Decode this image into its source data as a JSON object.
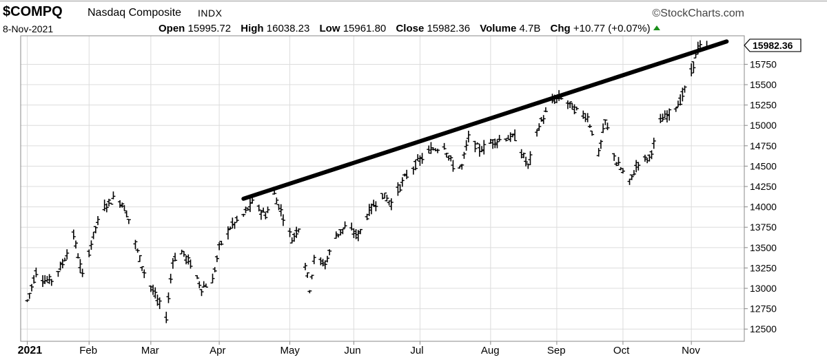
{
  "header": {
    "symbol": "$COMPQ",
    "name": "Nasdaq Composite",
    "exchange": "INDX",
    "brand": "StockCharts.com",
    "brand_icon": "copyright-icon",
    "date": "8-Nov-2021",
    "open_label": "Open",
    "open": "15995.72",
    "high_label": "High",
    "high": "16038.23",
    "low_label": "Low",
    "low": "15961.80",
    "close_label": "Close",
    "close": "15982.36",
    "volume_label": "Volume",
    "volume": "4.7B",
    "chg_label": "Chg",
    "chg": "+10.77 (+0.07%)",
    "chg_icon": "up-triangle-icon",
    "chg_color": "#1a8f1a"
  },
  "chart_data": {
    "type": "line",
    "title": "",
    "xlabel": "",
    "ylabel": "",
    "x_ticks": [
      {
        "label": "2021",
        "date": "2021-01-04",
        "bold": true
      },
      {
        "label": "Feb",
        "date": "2021-02-01"
      },
      {
        "label": "Mar",
        "date": "2021-03-01"
      },
      {
        "label": "Apr",
        "date": "2021-04-01"
      },
      {
        "label": "May",
        "date": "2021-05-03"
      },
      {
        "label": "Jun",
        "date": "2021-06-01"
      },
      {
        "label": "Jul",
        "date": "2021-07-01"
      },
      {
        "label": "Aug",
        "date": "2021-08-02"
      },
      {
        "label": "Sep",
        "date": "2021-09-01"
      },
      {
        "label": "Oct",
        "date": "2021-10-01"
      },
      {
        "label": "Nov",
        "date": "2021-11-01"
      }
    ],
    "x_range": [
      "2021-01-01",
      "2021-11-25"
    ],
    "y_ticks": [
      12500,
      12750,
      13000,
      13250,
      13500,
      13750,
      14000,
      14250,
      14500,
      14750,
      15000,
      15250,
      15500,
      15750
    ],
    "ylim": [
      12350,
      16100
    ],
    "grid": true,
    "last_value_label": "15982.36",
    "series": [
      {
        "style": "ohlc-bars",
        "color": "#000000",
        "points": [
          [
            "2021-01-04",
            12800,
            12850
          ],
          [
            "2021-01-08",
            13150,
            13200
          ],
          [
            "2021-01-12",
            13050,
            13100
          ],
          [
            "2021-01-15",
            13000,
            13100
          ],
          [
            "2021-01-20",
            13250,
            13300
          ],
          [
            "2021-01-25",
            13600,
            13650
          ],
          [
            "2021-01-29",
            13200,
            13150
          ],
          [
            "2021-02-04",
            13700,
            13750
          ],
          [
            "2021-02-08",
            13950,
            14000
          ],
          [
            "2021-02-12",
            14050,
            14100
          ],
          [
            "2021-02-16",
            14000,
            14050
          ],
          [
            "2021-02-19",
            13900,
            13850
          ],
          [
            "2021-02-23",
            13500,
            13450
          ],
          [
            "2021-02-26",
            13250,
            13200
          ],
          [
            "2021-03-04",
            12900,
            12850
          ],
          [
            "2021-03-08",
            12700,
            12650
          ],
          [
            "2021-03-11",
            13300,
            13350
          ],
          [
            "2021-03-15",
            13400,
            13450
          ],
          [
            "2021-03-19",
            13250,
            13300
          ],
          [
            "2021-03-24",
            13050,
            13000
          ],
          [
            "2021-03-29",
            13000,
            13100
          ],
          [
            "2021-04-01",
            13450,
            13500
          ],
          [
            "2021-04-06",
            13700,
            13750
          ],
          [
            "2021-04-12",
            13850,
            13900
          ],
          [
            "2021-04-16",
            14000,
            14050
          ],
          [
            "2021-04-22",
            13800,
            13900
          ],
          [
            "2021-04-26",
            14100,
            14150
          ],
          [
            "2021-04-29",
            14000,
            13950
          ],
          [
            "2021-05-04",
            13650,
            13600
          ],
          [
            "2021-05-07",
            13700,
            13750
          ],
          [
            "2021-05-12",
            13050,
            13000
          ],
          [
            "2021-05-14",
            13300,
            13350
          ],
          [
            "2021-05-19",
            13250,
            13300
          ],
          [
            "2021-05-24",
            13600,
            13650
          ],
          [
            "2021-05-28",
            13750,
            13750
          ],
          [
            "2021-06-03",
            13700,
            13650
          ],
          [
            "2021-06-08",
            13900,
            13950
          ],
          [
            "2021-06-14",
            14100,
            14150
          ],
          [
            "2021-06-18",
            14000,
            14050
          ],
          [
            "2021-06-24",
            14300,
            14350
          ],
          [
            "2021-06-30",
            14500,
            14550
          ],
          [
            "2021-07-06",
            14650,
            14700
          ],
          [
            "2021-07-12",
            14700,
            14750
          ],
          [
            "2021-07-16",
            14450,
            14500
          ],
          [
            "2021-07-20",
            14450,
            14500
          ],
          [
            "2021-07-23",
            14800,
            14850
          ],
          [
            "2021-07-28",
            14750,
            14700
          ],
          [
            "2021-08-03",
            14750,
            14800
          ],
          [
            "2021-08-09",
            14850,
            14850
          ],
          [
            "2021-08-13",
            14800,
            14850
          ],
          [
            "2021-08-19",
            14550,
            14500
          ],
          [
            "2021-08-24",
            14950,
            15000
          ],
          [
            "2021-08-30",
            15250,
            15300
          ],
          [
            "2021-09-03",
            15350,
            15350
          ],
          [
            "2021-09-09",
            15250,
            15200
          ],
          [
            "2021-09-15",
            15150,
            15100
          ],
          [
            "2021-09-20",
            14700,
            14650
          ],
          [
            "2021-09-23",
            15000,
            15050
          ],
          [
            "2021-09-28",
            14600,
            14550
          ],
          [
            "2021-10-04",
            14250,
            14300
          ],
          [
            "2021-10-08",
            14600,
            14550
          ],
          [
            "2021-10-13",
            14550,
            14600
          ],
          [
            "2021-10-18",
            15000,
            15050
          ],
          [
            "2021-10-22",
            15100,
            15150
          ],
          [
            "2021-10-27",
            15250,
            15300
          ],
          [
            "2021-11-01",
            15600,
            15650
          ],
          [
            "2021-11-04",
            15900,
            15950
          ],
          [
            "2021-11-08",
            15995.72,
            15982.36
          ]
        ]
      }
    ],
    "annotations": [
      {
        "type": "trendline",
        "color": "#000000",
        "from": [
          "2021-04-12",
          14100
        ],
        "to": [
          "2021-11-17",
          16030
        ]
      }
    ]
  }
}
